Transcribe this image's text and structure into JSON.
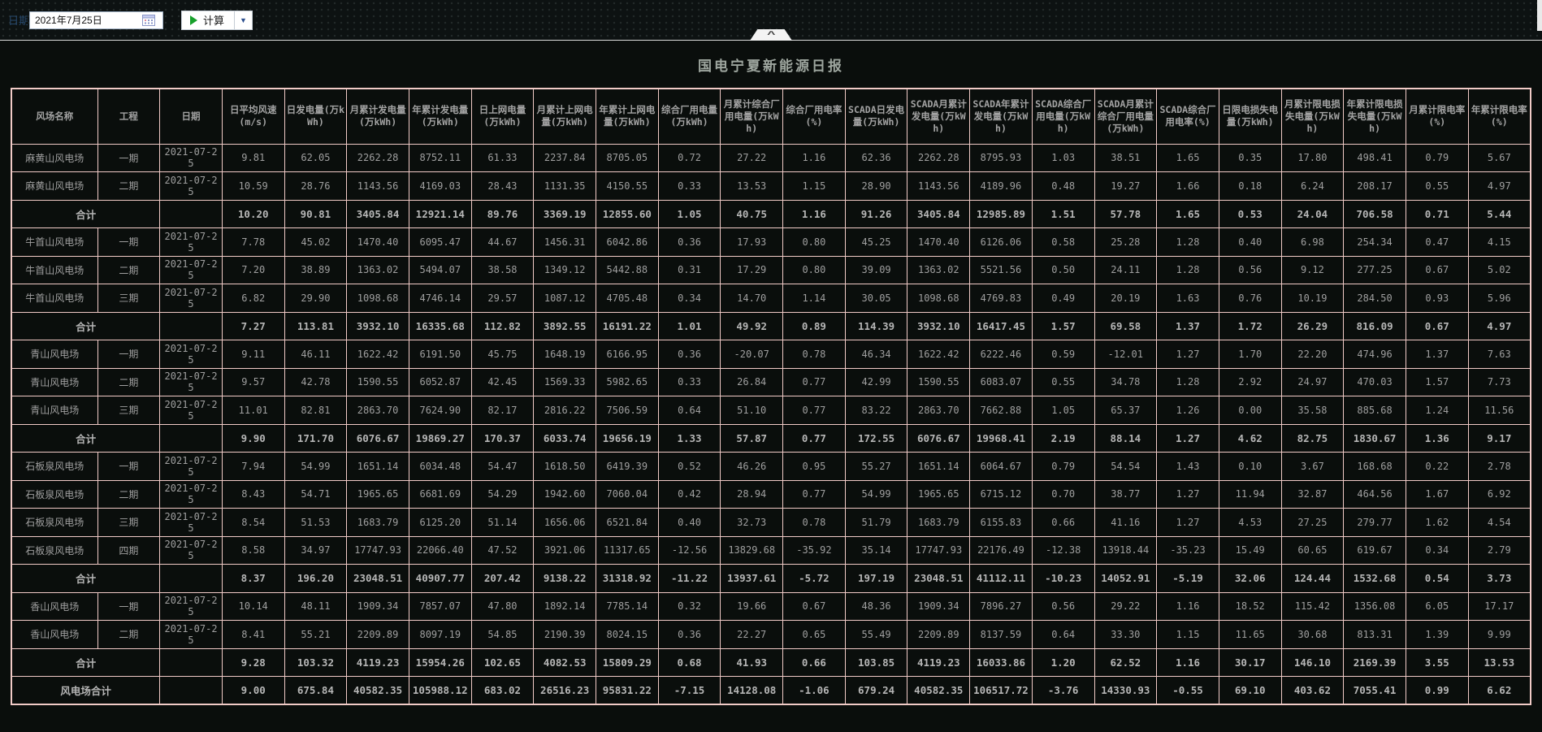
{
  "toolbar": {
    "date_label": "日期",
    "date_value": "2021年7月25日",
    "calc_button_label": "计算"
  },
  "panel": {
    "title": "国电宁夏新能源日报"
  },
  "colors": {
    "table_border": "#f1cbc7",
    "panel_background": "#0a0e0c",
    "play_icon_green": "#17a02b",
    "dropdown_arrow_blue": "#2c4f8e",
    "cell_text": "#9f9f9f"
  },
  "table": {
    "headers": [
      "风场名称",
      "工程",
      "日期",
      "日平均风速(m/s)",
      "日发电量(万kWh)",
      "月累计发电量(万kWh)",
      "年累计发电量(万kWh)",
      "日上网电量(万kWh)",
      "月累计上网电量(万kWh)",
      "年累计上网电量(万kWh)",
      "综合厂用电量(万kWh)",
      "月累计综合厂用电量(万kWh)",
      "综合厂用电率(%)",
      "SCADA日发电量(万kWh)",
      "SCADA月累计发电量(万kWh)",
      "SCADA年累计发电量(万kWh)",
      "SCADA综合厂用电量(万kWh)",
      "SCADA月累计综合厂用电量(万kWh)",
      "SCADA综合厂用电率(%)",
      "日限电损失电量(万kWh)",
      "月累计限电损失电量(万kWh)",
      "年累计限电损失电量(万kWh)",
      "月累计限电率(%)",
      "年累计限电率(%)"
    ],
    "rows": [
      {
        "type": "data",
        "farm": "麻黄山风电场",
        "phase": "一期",
        "date": "2021-07-25",
        "values": [
          "9.81",
          "62.05",
          "2262.28",
          "8752.11",
          "61.33",
          "2237.84",
          "8705.05",
          "0.72",
          "27.22",
          "1.16",
          "62.36",
          "2262.28",
          "8795.93",
          "1.03",
          "38.51",
          "1.65",
          "0.35",
          "17.80",
          "498.41",
          "0.79",
          "5.67"
        ]
      },
      {
        "type": "data",
        "farm": "麻黄山风电场",
        "phase": "二期",
        "date": "2021-07-25",
        "values": [
          "10.59",
          "28.76",
          "1143.56",
          "4169.03",
          "28.43",
          "1131.35",
          "4150.55",
          "0.33",
          "13.53",
          "1.15",
          "28.90",
          "1143.56",
          "4189.96",
          "0.48",
          "19.27",
          "1.66",
          "0.18",
          "6.24",
          "208.17",
          "0.55",
          "4.97"
        ]
      },
      {
        "type": "subtotal",
        "label": "合计",
        "values": [
          "10.20",
          "90.81",
          "3405.84",
          "12921.14",
          "89.76",
          "3369.19",
          "12855.60",
          "1.05",
          "40.75",
          "1.16",
          "91.26",
          "3405.84",
          "12985.89",
          "1.51",
          "57.78",
          "1.65",
          "0.53",
          "24.04",
          "706.58",
          "0.71",
          "5.44"
        ]
      },
      {
        "type": "data",
        "farm": "牛首山风电场",
        "phase": "一期",
        "date": "2021-07-25",
        "values": [
          "7.78",
          "45.02",
          "1470.40",
          "6095.47",
          "44.67",
          "1456.31",
          "6042.86",
          "0.36",
          "17.93",
          "0.80",
          "45.25",
          "1470.40",
          "6126.06",
          "0.58",
          "25.28",
          "1.28",
          "0.40",
          "6.98",
          "254.34",
          "0.47",
          "4.15"
        ]
      },
      {
        "type": "data",
        "farm": "牛首山风电场",
        "phase": "二期",
        "date": "2021-07-25",
        "values": [
          "7.20",
          "38.89",
          "1363.02",
          "5494.07",
          "38.58",
          "1349.12",
          "5442.88",
          "0.31",
          "17.29",
          "0.80",
          "39.09",
          "1363.02",
          "5521.56",
          "0.50",
          "24.11",
          "1.28",
          "0.56",
          "9.12",
          "277.25",
          "0.67",
          "5.02"
        ]
      },
      {
        "type": "data",
        "farm": "牛首山风电场",
        "phase": "三期",
        "date": "2021-07-25",
        "values": [
          "6.82",
          "29.90",
          "1098.68",
          "4746.14",
          "29.57",
          "1087.12",
          "4705.48",
          "0.34",
          "14.70",
          "1.14",
          "30.05",
          "1098.68",
          "4769.83",
          "0.49",
          "20.19",
          "1.63",
          "0.76",
          "10.19",
          "284.50",
          "0.93",
          "5.96"
        ]
      },
      {
        "type": "subtotal",
        "label": "合计",
        "values": [
          "7.27",
          "113.81",
          "3932.10",
          "16335.68",
          "112.82",
          "3892.55",
          "16191.22",
          "1.01",
          "49.92",
          "0.89",
          "114.39",
          "3932.10",
          "16417.45",
          "1.57",
          "69.58",
          "1.37",
          "1.72",
          "26.29",
          "816.09",
          "0.67",
          "4.97"
        ]
      },
      {
        "type": "data",
        "farm": "青山风电场",
        "phase": "一期",
        "date": "2021-07-25",
        "values": [
          "9.11",
          "46.11",
          "1622.42",
          "6191.50",
          "45.75",
          "1648.19",
          "6166.95",
          "0.36",
          "-20.07",
          "0.78",
          "46.34",
          "1622.42",
          "6222.46",
          "0.59",
          "-12.01",
          "1.27",
          "1.70",
          "22.20",
          "474.96",
          "1.37",
          "7.63"
        ]
      },
      {
        "type": "data",
        "farm": "青山风电场",
        "phase": "二期",
        "date": "2021-07-25",
        "values": [
          "9.57",
          "42.78",
          "1590.55",
          "6052.87",
          "42.45",
          "1569.33",
          "5982.65",
          "0.33",
          "26.84",
          "0.77",
          "42.99",
          "1590.55",
          "6083.07",
          "0.55",
          "34.78",
          "1.28",
          "2.92",
          "24.97",
          "470.03",
          "1.57",
          "7.73"
        ]
      },
      {
        "type": "data",
        "farm": "青山风电场",
        "phase": "三期",
        "date": "2021-07-25",
        "values": [
          "11.01",
          "82.81",
          "2863.70",
          "7624.90",
          "82.17",
          "2816.22",
          "7506.59",
          "0.64",
          "51.10",
          "0.77",
          "83.22",
          "2863.70",
          "7662.88",
          "1.05",
          "65.37",
          "1.26",
          "0.00",
          "35.58",
          "885.68",
          "1.24",
          "11.56"
        ]
      },
      {
        "type": "subtotal",
        "label": "合计",
        "values": [
          "9.90",
          "171.70",
          "6076.67",
          "19869.27",
          "170.37",
          "6033.74",
          "19656.19",
          "1.33",
          "57.87",
          "0.77",
          "172.55",
          "6076.67",
          "19968.41",
          "2.19",
          "88.14",
          "1.27",
          "4.62",
          "82.75",
          "1830.67",
          "1.36",
          "9.17"
        ]
      },
      {
        "type": "data",
        "farm": "石板泉风电场",
        "phase": "一期",
        "date": "2021-07-25",
        "values": [
          "7.94",
          "54.99",
          "1651.14",
          "6034.48",
          "54.47",
          "1618.50",
          "6419.39",
          "0.52",
          "46.26",
          "0.95",
          "55.27",
          "1651.14",
          "6064.67",
          "0.79",
          "54.54",
          "1.43",
          "0.10",
          "3.67",
          "168.68",
          "0.22",
          "2.78"
        ]
      },
      {
        "type": "data",
        "farm": "石板泉风电场",
        "phase": "二期",
        "date": "2021-07-25",
        "values": [
          "8.43",
          "54.71",
          "1965.65",
          "6681.69",
          "54.29",
          "1942.60",
          "7060.04",
          "0.42",
          "28.94",
          "0.77",
          "54.99",
          "1965.65",
          "6715.12",
          "0.70",
          "38.77",
          "1.27",
          "11.94",
          "32.87",
          "464.56",
          "1.67",
          "6.92"
        ]
      },
      {
        "type": "data",
        "farm": "石板泉风电场",
        "phase": "三期",
        "date": "2021-07-25",
        "values": [
          "8.54",
          "51.53",
          "1683.79",
          "6125.20",
          "51.14",
          "1656.06",
          "6521.84",
          "0.40",
          "32.73",
          "0.78",
          "51.79",
          "1683.79",
          "6155.83",
          "0.66",
          "41.16",
          "1.27",
          "4.53",
          "27.25",
          "279.77",
          "1.62",
          "4.54"
        ]
      },
      {
        "type": "data",
        "farm": "石板泉风电场",
        "phase": "四期",
        "date": "2021-07-25",
        "values": [
          "8.58",
          "34.97",
          "17747.93",
          "22066.40",
          "47.52",
          "3921.06",
          "11317.65",
          "-12.56",
          "13829.68",
          "-35.92",
          "35.14",
          "17747.93",
          "22176.49",
          "-12.38",
          "13918.44",
          "-35.23",
          "15.49",
          "60.65",
          "619.67",
          "0.34",
          "2.79"
        ]
      },
      {
        "type": "subtotal",
        "label": "合计",
        "values": [
          "8.37",
          "196.20",
          "23048.51",
          "40907.77",
          "207.42",
          "9138.22",
          "31318.92",
          "-11.22",
          "13937.61",
          "-5.72",
          "197.19",
          "23048.51",
          "41112.11",
          "-10.23",
          "14052.91",
          "-5.19",
          "32.06",
          "124.44",
          "1532.68",
          "0.54",
          "3.73"
        ]
      },
      {
        "type": "data",
        "farm": "香山风电场",
        "phase": "一期",
        "date": "2021-07-25",
        "values": [
          "10.14",
          "48.11",
          "1909.34",
          "7857.07",
          "47.80",
          "1892.14",
          "7785.14",
          "0.32",
          "19.66",
          "0.67",
          "48.36",
          "1909.34",
          "7896.27",
          "0.56",
          "29.22",
          "1.16",
          "18.52",
          "115.42",
          "1356.08",
          "6.05",
          "17.17"
        ]
      },
      {
        "type": "data",
        "farm": "香山风电场",
        "phase": "二期",
        "date": "2021-07-25",
        "values": [
          "8.41",
          "55.21",
          "2209.89",
          "8097.19",
          "54.85",
          "2190.39",
          "8024.15",
          "0.36",
          "22.27",
          "0.65",
          "55.49",
          "2209.89",
          "8137.59",
          "0.64",
          "33.30",
          "1.15",
          "11.65",
          "30.68",
          "813.31",
          "1.39",
          "9.99"
        ]
      },
      {
        "type": "subtotal",
        "label": "合计",
        "values": [
          "9.28",
          "103.32",
          "4119.23",
          "15954.26",
          "102.65",
          "4082.53",
          "15809.29",
          "0.68",
          "41.93",
          "0.66",
          "103.85",
          "4119.23",
          "16033.86",
          "1.20",
          "62.52",
          "1.16",
          "30.17",
          "146.10",
          "2169.39",
          "3.55",
          "13.53"
        ]
      },
      {
        "type": "grandtotal",
        "label": "风电场合计",
        "values": [
          "9.00",
          "675.84",
          "40582.35",
          "105988.12",
          "683.02",
          "26516.23",
          "95831.22",
          "-7.15",
          "14128.08",
          "-1.06",
          "679.24",
          "40582.35",
          "106517.72",
          "-3.76",
          "14330.93",
          "-0.55",
          "69.10",
          "403.62",
          "7055.41",
          "0.99",
          "6.62"
        ]
      }
    ]
  }
}
